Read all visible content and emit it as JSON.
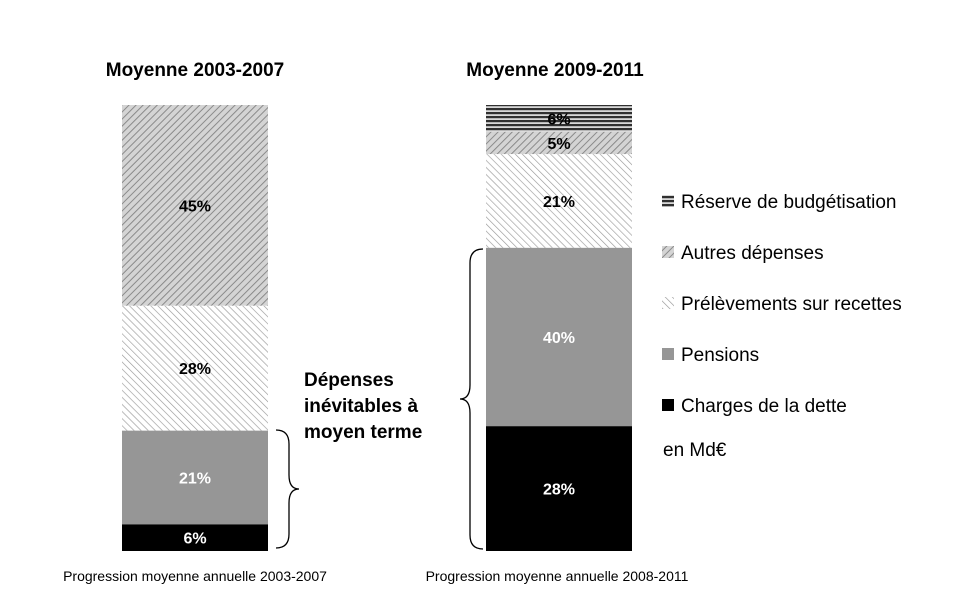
{
  "chart_data": {
    "type": "bar",
    "stacked": true,
    "unit_note": "en Md€",
    "categories": [
      "Moyenne 2003-2007",
      "Moyenne 2009-2011"
    ],
    "subtitles": [
      "Progression moyenne annuelle 2003-2007",
      "Progression moyenne annuelle 2008-2011"
    ],
    "series": [
      {
        "name": "Charges de la dette",
        "key": "dette",
        "values": [
          6,
          28
        ],
        "labels": [
          "6%",
          "28%"
        ],
        "fill": "#000000",
        "label_color": "#ffffff",
        "pattern": "solid"
      },
      {
        "name": "Pensions",
        "key": "pensions",
        "values": [
          21,
          40
        ],
        "labels": [
          "21%",
          "40%"
        ],
        "fill": "#969696",
        "label_color": "#ffffff",
        "pattern": "solid"
      },
      {
        "name": "Prélèvements sur recettes",
        "key": "prelevements",
        "values": [
          28,
          21
        ],
        "labels": [
          "28%",
          "21%"
        ],
        "fill": "#ffffff",
        "label_color": "#000000",
        "pattern": "light-diagonal"
      },
      {
        "name": "Autres dépenses",
        "key": "autres",
        "values": [
          45,
          5
        ],
        "labels": [
          "45%",
          "5%"
        ],
        "fill": "#c0c0c0",
        "label_color": "#000000",
        "pattern": "dark-diagonal"
      },
      {
        "name": "Réserve de budgétisation",
        "key": "reserve",
        "values": [
          0,
          6
        ],
        "labels": [
          "",
          "6%"
        ],
        "fill": "#808080",
        "label_color": "#000000",
        "pattern": "horizontal"
      }
    ],
    "legend_order": [
      "reserve",
      "autres",
      "prelevements",
      "pensions",
      "dette"
    ],
    "annotation": [
      "Dépenses",
      "inévitables à",
      "moyen terme"
    ],
    "ylim": [
      0,
      100
    ]
  }
}
